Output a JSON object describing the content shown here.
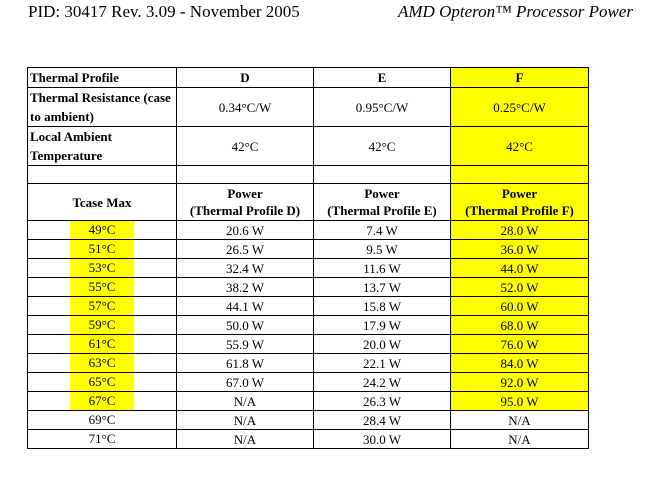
{
  "header": {
    "left": "PID: 30417 Rev. 3.09 - November 2005",
    "right": "AMD Opteron™ Processor Power"
  },
  "table": {
    "rows": {
      "thermal_profile": {
        "label": "Thermal Profile",
        "D": "D",
        "E": "E",
        "F": "F"
      },
      "thermal_resistance": {
        "label": "Thermal Resistance (case to ambient)",
        "D": "0.34°C/W",
        "E": "0.95°C/W",
        "F": "0.25°C/W"
      },
      "local_ambient": {
        "label": "Local Ambient Temperature",
        "D": "42°C",
        "E": "42°C",
        "F": "42°C"
      }
    },
    "tcase_header": "Tcase Max",
    "power_headers": {
      "D": {
        "line1": "Power",
        "line2": "(Thermal Profile D)"
      },
      "E": {
        "line1": "Power",
        "line2": "(Thermal Profile E)"
      },
      "F": {
        "line1": "Power",
        "line2": "(Thermal Profile F)"
      }
    },
    "data_rows": [
      {
        "tcase": "49°C",
        "D": "20.6 W",
        "E": "7.4 W",
        "F": "28.0 W",
        "highlight": true
      },
      {
        "tcase": "51°C",
        "D": "26.5 W",
        "E": "9.5 W",
        "F": "36.0 W",
        "highlight": true
      },
      {
        "tcase": "53°C",
        "D": "32.4 W",
        "E": "11.6 W",
        "F": "44.0 W",
        "highlight": true
      },
      {
        "tcase": "55°C",
        "D": "38.2 W",
        "E": "13.7 W",
        "F": "52.0 W",
        "highlight": true
      },
      {
        "tcase": "57°C",
        "D": "44.1 W",
        "E": "15.8 W",
        "F": "60.0 W",
        "highlight": true
      },
      {
        "tcase": "59°C",
        "D": "50.0 W",
        "E": "17.9 W",
        "F": "68.0 W",
        "highlight": true
      },
      {
        "tcase": "61°C",
        "D": "55.9 W",
        "E": "20.0 W",
        "F": "76.0 W",
        "highlight": true
      },
      {
        "tcase": "63°C",
        "D": "61.8 W",
        "E": "22.1 W",
        "F": "84.0 W",
        "highlight": true
      },
      {
        "tcase": "65°C",
        "D": "67.0 W",
        "E": "24.2 W",
        "F": "92.0 W",
        "highlight": true
      },
      {
        "tcase": "67°C",
        "D": "N/A",
        "E": "26.3 W",
        "F": "95.0 W",
        "highlight": true
      },
      {
        "tcase": "69°C",
        "D": "N/A",
        "E": "28.4 W",
        "F": "N/A",
        "highlight": false
      },
      {
        "tcase": "71°C",
        "D": "N/A",
        "E": "30.0 W",
        "F": "N/A",
        "highlight": false
      }
    ],
    "colors": {
      "highlight": "#ffff00",
      "border": "#000000",
      "background": "#ffffff"
    }
  }
}
